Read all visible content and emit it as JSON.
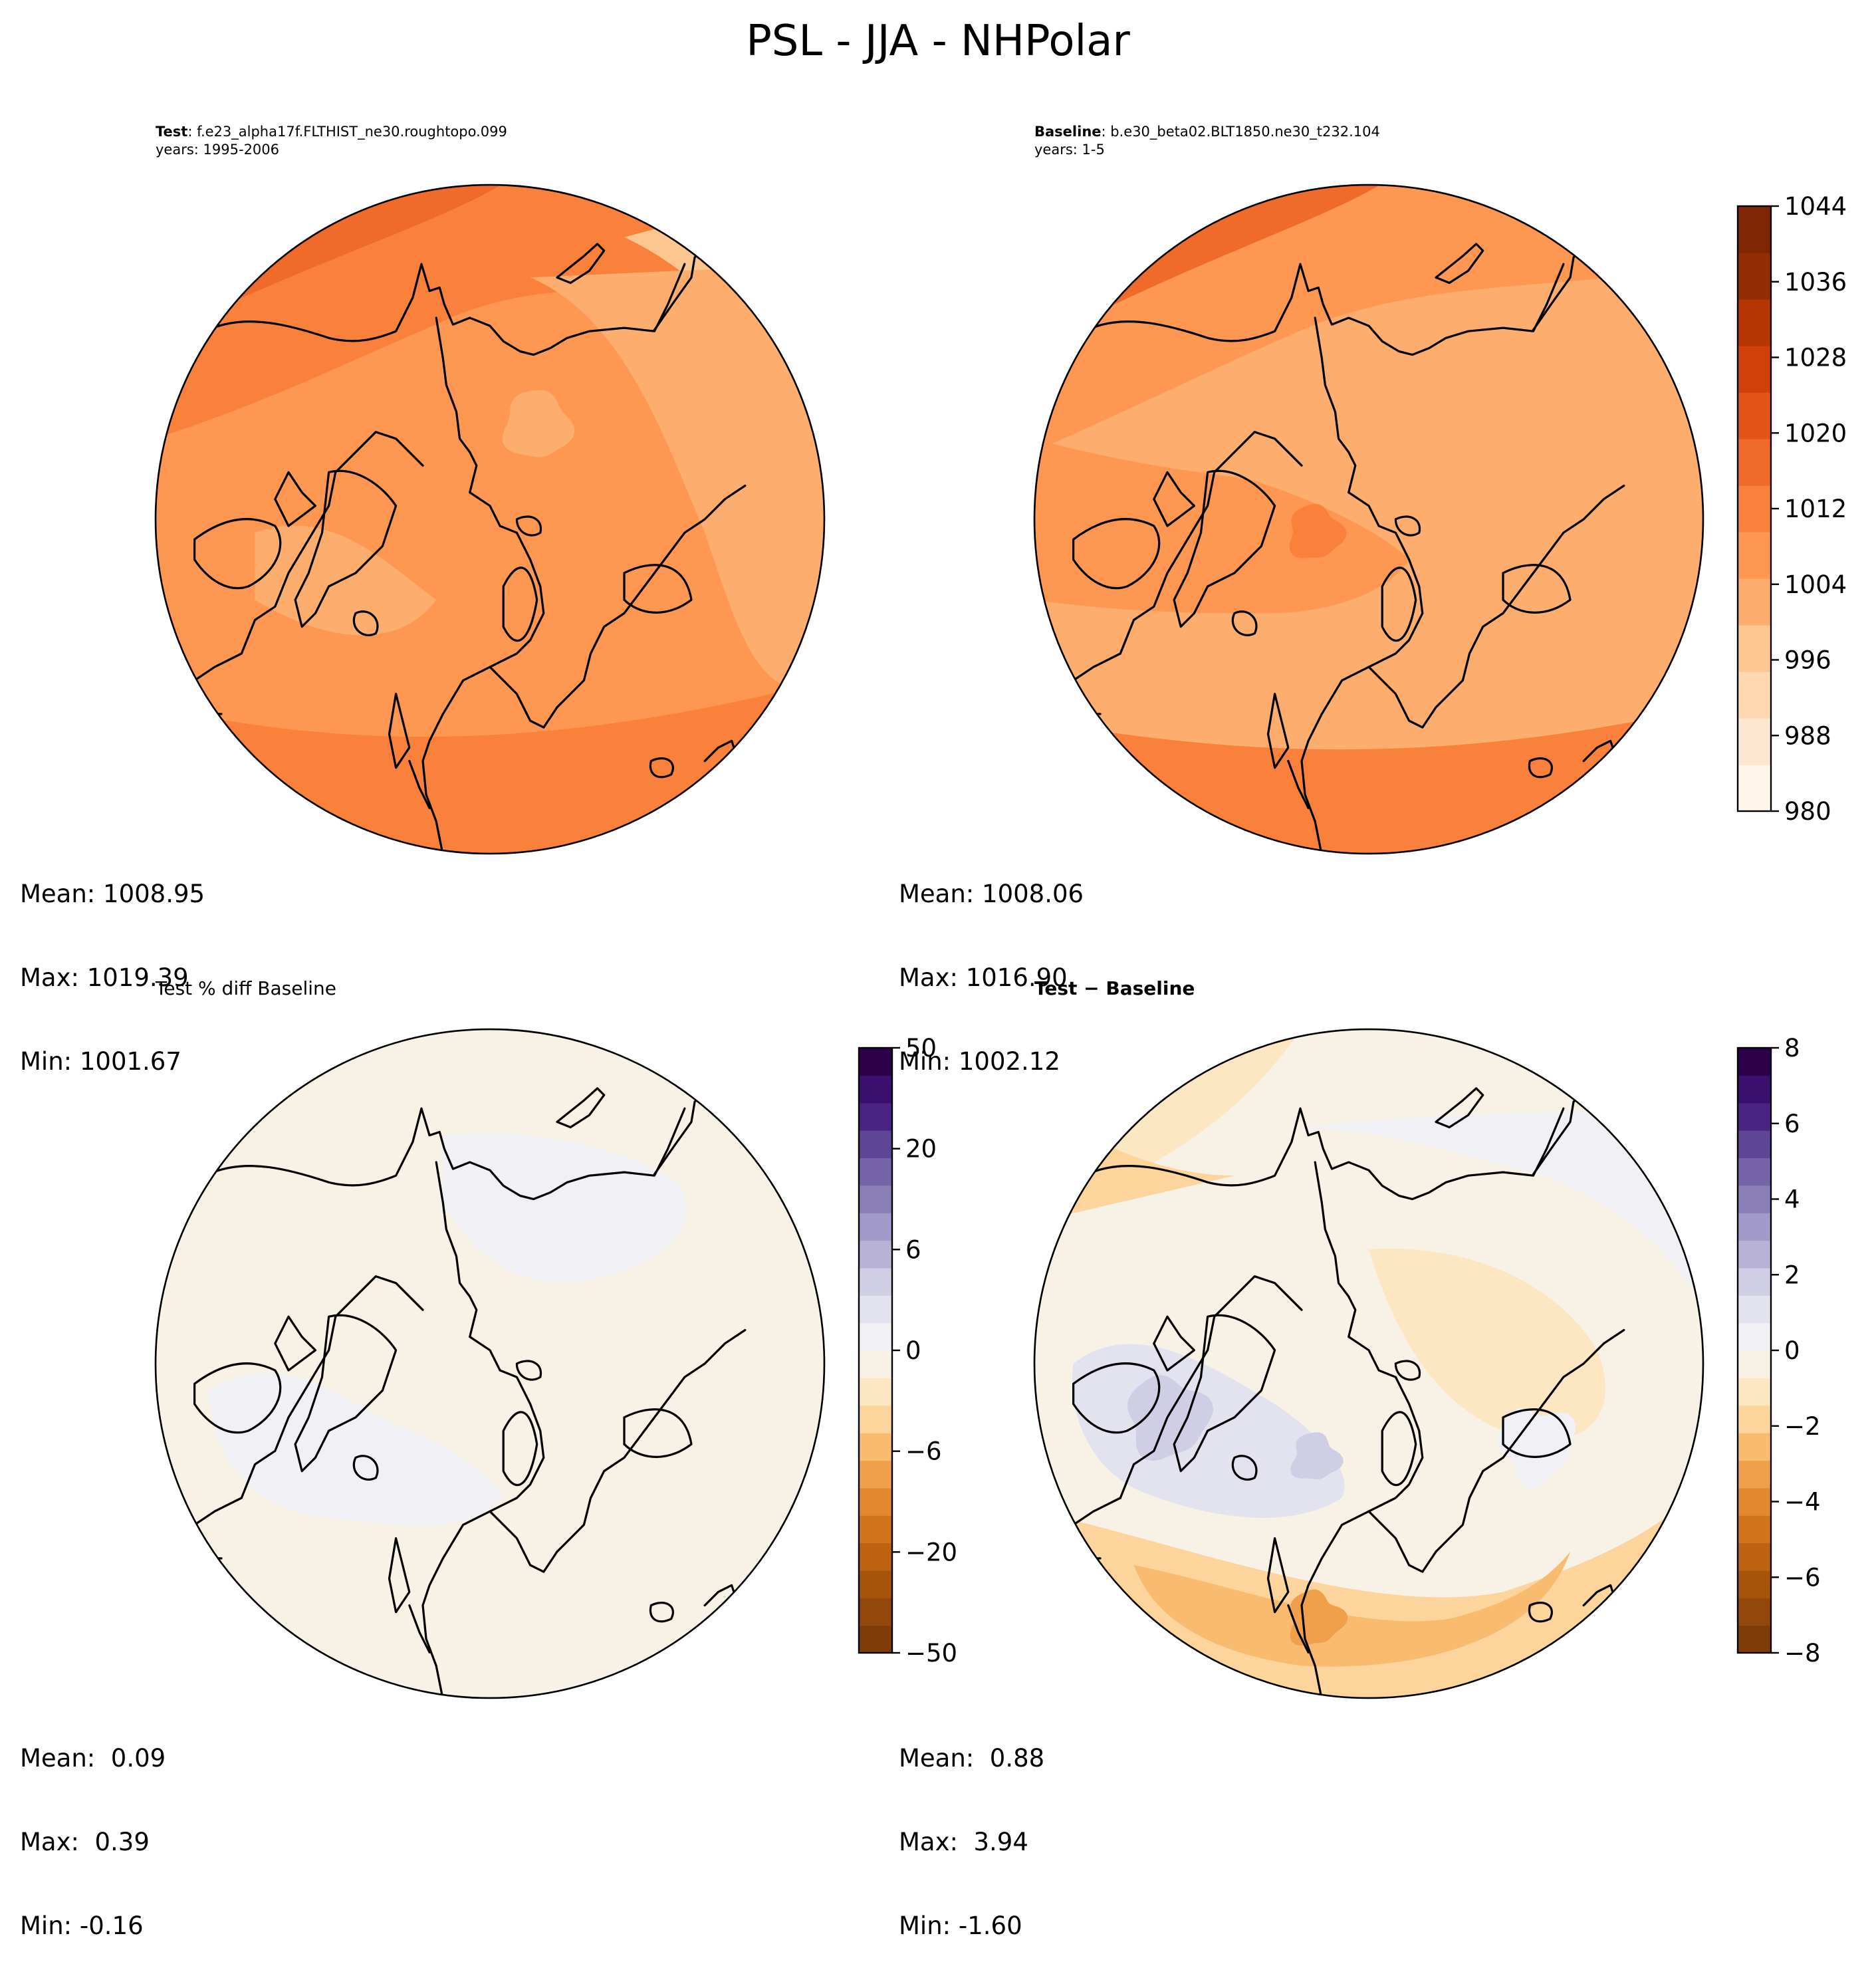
{
  "title": "PSL - JJA - NHPolar",
  "panels": {
    "test": {
      "label": "Test",
      "name": ": f.e23_alpha17f.FLTHIST_ne30.roughtopo.099",
      "years": "years: 1995-2006",
      "stats": {
        "mean": "Mean: 1008.95",
        "max": "Max: 1019.39",
        "min": "Min: 1001.67"
      }
    },
    "baseline": {
      "label": "Baseline",
      "name": ": b.e30_beta02.BLT1850.ne30_t232.104",
      "years": "years: 1-5",
      "stats": {
        "mean": "Mean: 1008.06",
        "max": "Max: 1016.90",
        "min": "Min: 1002.12"
      }
    },
    "pct_diff": {
      "title": "Test % diff Baseline",
      "stats": {
        "mean": "Mean:  0.09",
        "max": "Max:  0.39",
        "min": "Min: -0.16"
      }
    },
    "diff": {
      "title": "Test − Baseline",
      "stats": {
        "mean": "Mean:  0.88",
        "max": "Max:  3.94",
        "min": "Min: -1.60"
      }
    }
  },
  "colorbars": {
    "main": {
      "colormap": "Oranges",
      "range": [
        980,
        1048
      ],
      "ticks": [
        "1044",
        "1036",
        "1028",
        "1020",
        "1012",
        "1004",
        "996",
        "988",
        "980"
      ],
      "colors": [
        "#fff5eb",
        "#fee7d0",
        "#fdd8b0",
        "#fdc590",
        "#fdad6d",
        "#fd9751",
        "#f9813c",
        "#f06a29",
        "#e35516",
        "#cf4108",
        "#b63603",
        "#952d04",
        "#7f2704"
      ]
    },
    "pct": {
      "colormap": "PuOr_r",
      "ticks": [
        "50",
        "20",
        "6",
        "0",
        "−6",
        "−20",
        "−50"
      ],
      "colors": [
        "#7f3b08",
        "#93470a",
        "#a7540b",
        "#bc6210",
        "#d2741c",
        "#e28930",
        "#f0a04b",
        "#f9bb70",
        "#fdd49b",
        "#fde6c2",
        "#f8f1e6",
        "#f1f0f4",
        "#e3e2ef",
        "#d0cee5",
        "#b8b2d6",
        "#a29ac8",
        "#8b7fb8",
        "#7565a8",
        "#5e4595",
        "#4b2385",
        "#3a0f6d",
        "#2d004b"
      ]
    },
    "diff": {
      "colormap": "PuOr_r",
      "ticks": [
        "8",
        "6",
        "4",
        "2",
        "0",
        "−2",
        "−4",
        "−6",
        "−8"
      ],
      "colors": [
        "#7f3b08",
        "#93470a",
        "#a7540b",
        "#bc6210",
        "#d2741c",
        "#e28930",
        "#f0a04b",
        "#f9bb70",
        "#fdd49b",
        "#fde6c2",
        "#f8f1e6",
        "#f1f0f4",
        "#e3e2ef",
        "#d0cee5",
        "#b8b2d6",
        "#a29ac8",
        "#8b7fb8",
        "#7565a8",
        "#5e4595",
        "#4b2385",
        "#3a0f6d",
        "#2d004b"
      ]
    }
  }
}
